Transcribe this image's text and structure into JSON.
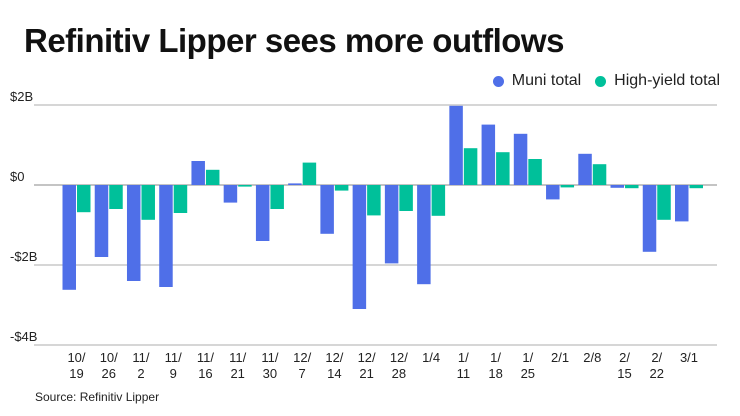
{
  "title": "Refinitiv Lipper sees more outflows",
  "source": "Source: Refinitiv Lipper",
  "chart_data": {
    "type": "bar",
    "title": "Refinitiv Lipper sees more outflows",
    "xlabel": "",
    "ylabel": "",
    "ylim": [
      -4,
      2
    ],
    "yticks": [
      2,
      0,
      -2,
      -4
    ],
    "ytick_labels": [
      "$2B",
      "$0",
      "-$2B",
      "-$4B"
    ],
    "grid": true,
    "legend_position": "top-right",
    "categories": [
      "10/19",
      "10/26",
      "11/2",
      "11/9",
      "11/16",
      "11/21",
      "11/30",
      "12/7",
      "12/14",
      "12/21",
      "12/28",
      "1/4",
      "1/11",
      "1/18",
      "1/25",
      "2/1",
      "2/8",
      "2/15",
      "2/22",
      "3/1"
    ],
    "category_labels": [
      [
        "10/",
        "19"
      ],
      [
        "10/",
        "26"
      ],
      [
        "11/",
        "2"
      ],
      [
        "11/",
        "9"
      ],
      [
        "11/",
        "16"
      ],
      [
        "11/",
        "21"
      ],
      [
        "11/",
        "30"
      ],
      [
        "12/",
        "7"
      ],
      [
        "12/",
        "14"
      ],
      [
        "12/",
        "21"
      ],
      [
        "12/",
        "28"
      ],
      [
        "1/4",
        ""
      ],
      [
        "1/",
        "11"
      ],
      [
        "1/",
        "18"
      ],
      [
        "1/",
        "25"
      ],
      [
        "2/1",
        ""
      ],
      [
        "2/8",
        ""
      ],
      [
        "2/",
        "15"
      ],
      [
        "2/",
        "22"
      ],
      [
        "3/1",
        ""
      ]
    ],
    "series": [
      {
        "name": "Muni total",
        "color": "#4F6FE8",
        "values": [
          -2.62,
          -1.8,
          -2.4,
          -2.55,
          0.6,
          -0.44,
          -1.4,
          0.04,
          -1.22,
          -3.1,
          -1.96,
          -2.48,
          1.98,
          1.51,
          1.28,
          -0.36,
          0.78,
          -0.07,
          -1.67,
          -0.91
        ]
      },
      {
        "name": "High-yield total",
        "color": "#00C09A",
        "values": [
          -0.68,
          -0.6,
          -0.87,
          -0.7,
          0.38,
          -0.04,
          -0.6,
          0.56,
          -0.14,
          -0.76,
          -0.65,
          -0.77,
          0.92,
          0.82,
          0.65,
          -0.06,
          0.52,
          -0.08,
          -0.87,
          -0.08
        ]
      }
    ]
  }
}
